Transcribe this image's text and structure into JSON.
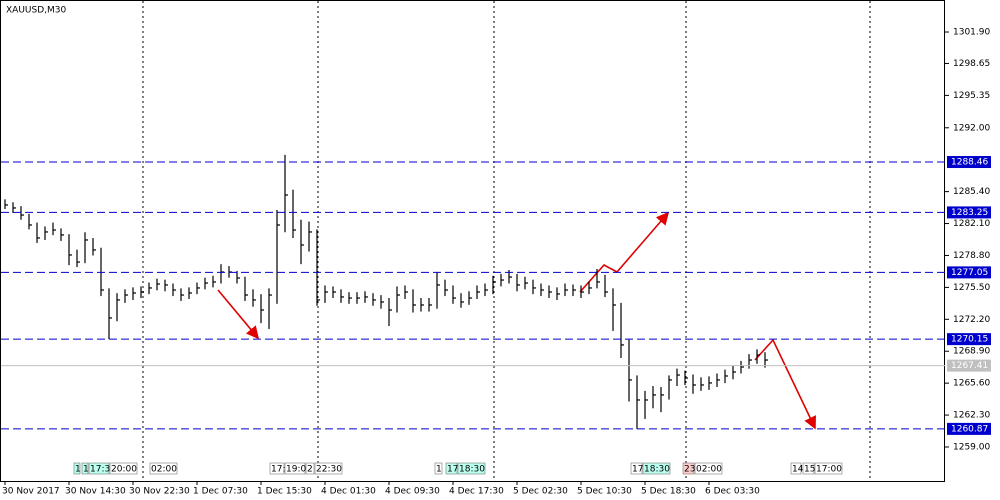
{
  "chart_data": {
    "type": "ohlc",
    "title": "XAUUSD,M30",
    "categories": [
      "30 Nov 2017",
      null,
      null,
      null,
      null,
      null,
      null,
      null,
      "30 Nov 14:30",
      null,
      null,
      null,
      null,
      null,
      null,
      null,
      "30 Nov 22:30",
      null,
      null,
      null,
      null,
      null,
      null,
      null,
      "1 Dec 07:30",
      null,
      null,
      null,
      null,
      null,
      null,
      null,
      "1 Dec 15:30",
      null,
      null,
      null,
      null,
      null,
      null,
      null,
      "4 Dec 01:30",
      null,
      null,
      null,
      null,
      null,
      null,
      null,
      "4 Dec 09:30",
      null,
      null,
      null,
      null,
      null,
      null,
      null,
      "4 Dec 17:30",
      null,
      null,
      null,
      null,
      null,
      null,
      null,
      "5 Dec 02:30",
      null,
      null,
      null,
      null,
      null,
      null,
      null,
      "5 Dec 10:30",
      null,
      null,
      null,
      null,
      null,
      null,
      null,
      "5 Dec 18:30",
      null,
      null,
      null,
      null,
      null,
      null,
      null,
      "6 Dec 03:30",
      null,
      null,
      null,
      null,
      null,
      null,
      null
    ],
    "high": [
      1284.6,
      1284.3,
      1283.9,
      1283.1,
      1282.2,
      1281.8,
      1282.2,
      1281.6,
      1281.0,
      1279.4,
      1281.2,
      1280.6,
      1279.6,
      1275.4,
      1274.9,
      1275.3,
      1275.5,
      1275.6,
      1276.0,
      1276.4,
      1276.3,
      1275.9,
      1275.4,
      1275.5,
      1276.0,
      1276.5,
      1276.7,
      1277.9,
      1277.7,
      1277.2,
      1276.6,
      1275.3,
      1274.8,
      1275.4,
      1283.5,
      1289.2,
      1285.6,
      1282.5,
      1282.3,
      1281.5,
      1275.7,
      1275.6,
      1275.3,
      1275.0,
      1275.0,
      1275.1,
      1274.9,
      1274.7,
      1274.4,
      1275.6,
      1275.7,
      1275.3,
      1274.4,
      1274.4,
      1277.1,
      1276.3,
      1275.7,
      1274.9,
      1275.1,
      1275.7,
      1275.9,
      1276.7,
      1276.9,
      1277.3,
      1276.9,
      1276.6,
      1276.3,
      1275.9,
      1275.7,
      1275.5,
      1275.9,
      1275.8,
      1275.7,
      1276.1,
      1277.4,
      1276.8,
      1275.4,
      1273.9,
      1270.1,
      1266.4,
      1264.8,
      1265.3,
      1265.2,
      1266.4,
      1267.1,
      1266.9,
      1266.5,
      1266.2,
      1266.3,
      1266.6,
      1267.0,
      1267.4,
      1267.9,
      1268.6,
      1269.1,
      1268.8
    ],
    "low": [
      1283.6,
      1283.2,
      1282.5,
      1281.5,
      1280.1,
      1280.4,
      1280.9,
      1280.3,
      1277.8,
      1277.6,
      1278.0,
      1278.8,
      1274.6,
      1270.15,
      1272.0,
      1273.9,
      1274.2,
      1274.4,
      1274.8,
      1275.2,
      1275.1,
      1274.6,
      1274.1,
      1274.3,
      1274.8,
      1275.3,
      1275.5,
      1275.9,
      1276.5,
      1275.9,
      1274.1,
      1273.5,
      1271.8,
      1271.2,
      1273.8,
      1281.2,
      1280.6,
      1277.9,
      1279.2,
      1273.6,
      1273.9,
      1274.4,
      1273.9,
      1273.8,
      1273.8,
      1273.9,
      1273.6,
      1273.3,
      1271.5,
      1272.9,
      1274.3,
      1272.9,
      1273.0,
      1273.0,
      1273.3,
      1274.6,
      1273.8,
      1273.4,
      1273.7,
      1274.3,
      1274.6,
      1274.8,
      1275.6,
      1275.9,
      1275.1,
      1275.3,
      1274.8,
      1274.6,
      1274.4,
      1274.2,
      1274.6,
      1274.6,
      1274.4,
      1274.8,
      1275.4,
      1274.5,
      1271.0,
      1268.2,
      1263.7,
      1260.87,
      1261.9,
      1263.0,
      1262.6,
      1263.9,
      1265.3,
      1265.4,
      1264.5,
      1264.8,
      1264.9,
      1265.2,
      1265.6,
      1266.0,
      1266.6,
      1267.1,
      1267.6,
      1267.2
    ],
    "close": [
      1284.02,
      1283.71,
      1282.98,
      1281.95,
      1280.61,
      1281.23,
      1281.43,
      1280.92,
      1278.85,
      1278.12,
      1280.4,
      1279.37,
      1275.23,
      1272.34,
      1274.2,
      1274.71,
      1274.92,
      1275.02,
      1275.44,
      1275.85,
      1275.75,
      1275.23,
      1274.71,
      1274.92,
      1275.44,
      1275.95,
      1276.06,
      1277.09,
      1277.09,
      1276.47,
      1274.71,
      1274.2,
      1273.16,
      1274.71,
      1281.95,
      1285.05,
      1281.43,
      1279.88,
      1281.23,
      1274.2,
      1275.02,
      1275.02,
      1274.51,
      1274.4,
      1274.4,
      1274.51,
      1274.2,
      1273.99,
      1273.16,
      1274.71,
      1275.02,
      1273.68,
      1273.68,
      1273.68,
      1275.75,
      1275.23,
      1274.4,
      1273.99,
      1274.4,
      1275.02,
      1275.23,
      1276.06,
      1276.26,
      1276.57,
      1275.75,
      1275.95,
      1275.44,
      1275.23,
      1275.02,
      1274.82,
      1275.23,
      1275.23,
      1275.02,
      1275.44,
      1276.06,
      1275.02,
      1273.68,
      1269.55,
      1265.93,
      1263.86,
      1263.86,
      1264.38,
      1264.38,
      1265.93,
      1266.44,
      1266.13,
      1265.41,
      1265.41,
      1265.62,
      1265.93,
      1266.34,
      1266.75,
      1267.27,
      1267.99,
      1268.51,
      1267.99
    ],
    "color": "#000000",
    "ylim": [
      1255.38,
      1305.21
    ],
    "yticks": [
      {
        "value": 1301.9,
        "label": "1301.90"
      },
      1298.65,
      1295.35,
      {
        "value": 1292,
        "label": "1292.00"
      },
      {
        "value": 1285.4,
        "label": "1285.40"
      },
      {
        "value": 1282.1,
        "label": "1282.10"
      },
      {
        "value": 1278.8,
        "label": "1278.80"
      },
      {
        "value": 1275.5,
        "label": "1275.50"
      },
      {
        "value": 1272.2,
        "label": "1272.20"
      },
      {
        "value": 1268.9,
        "label": "1268.90"
      },
      {
        "value": 1265.6,
        "label": "1265.60"
      },
      {
        "value": 1262.3,
        "label": "1262.30"
      },
      {
        "value": 1259,
        "label": "1259.00"
      }
    ],
    "hlines": [
      1288.46,
      1283.25,
      1277.05,
      1270.15,
      1260.87
    ],
    "hline_color": "#0000cc",
    "current_price": 1267.41,
    "time_markers": [
      "1",
      "1",
      "17:3",
      "20:00",
      "02:00",
      "17:",
      "19:0",
      "2",
      "22:30",
      "1",
      "17",
      "18:30",
      "17",
      "18:30",
      "23",
      "02:00",
      "14",
      "15",
      "17:00"
    ]
  }
}
